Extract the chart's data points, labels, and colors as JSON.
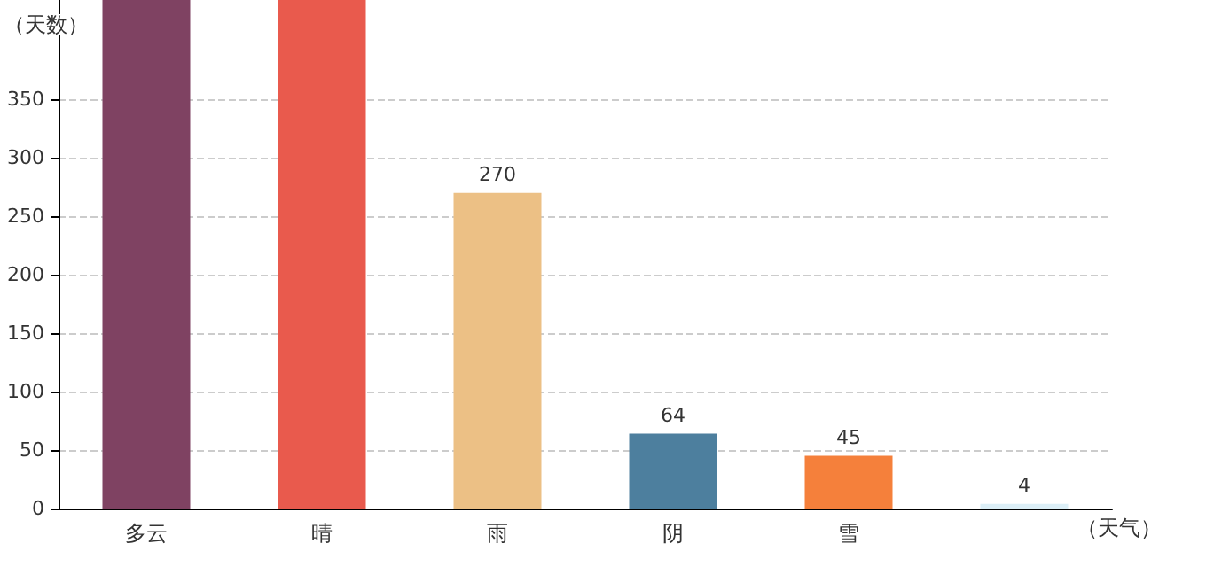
{
  "chart_data": {
    "type": "bar",
    "xlabel": "（天气）",
    "ylabel": "（天数）",
    "categories": [
      "多云",
      "晴",
      "雨",
      "阴",
      "雪",
      null
    ],
    "values": [
      435,
      435,
      270,
      64,
      45,
      4
    ],
    "colors": [
      "#7f4262",
      "#e95a4d",
      "#ecc085",
      "#4d7f9e",
      "#f5803b",
      "#dceff7"
    ],
    "value_labels": [
      null,
      null,
      "270",
      "64",
      "45",
      "4"
    ],
    "ylim": [
      0,
      435
    ],
    "yticks": [
      0,
      50,
      100,
      150,
      200,
      250,
      300,
      350
    ],
    "grid": "y"
  }
}
